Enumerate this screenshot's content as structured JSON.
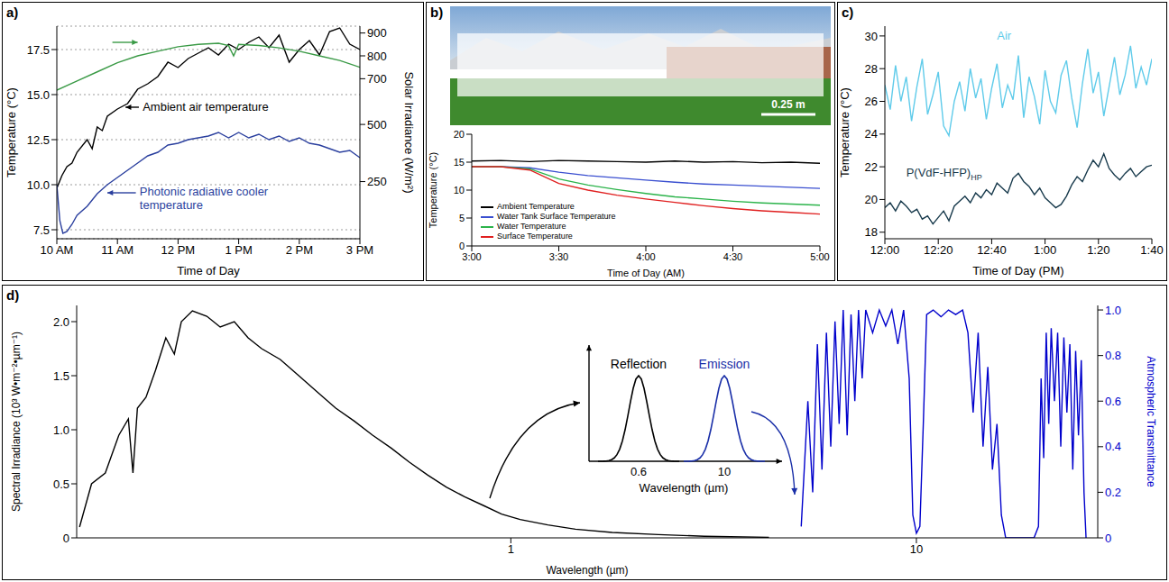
{
  "chart_data": [
    {
      "panel": "a)",
      "type": "line",
      "x_label": "Time of Day",
      "y_label": "Temperature (°C)",
      "y2_label": "Solar Irradiance (W/m²)",
      "xlim": [
        600,
        900
      ],
      "xticks": [
        {
          "value": 600,
          "label": "10 AM"
        },
        {
          "value": 660,
          "label": "11 AM"
        },
        {
          "value": 720,
          "label": "12 PM"
        },
        {
          "value": 780,
          "label": "1 PM"
        },
        {
          "value": 840,
          "label": "2 PM"
        },
        {
          "value": 900,
          "label": "3 PM"
        }
      ],
      "ylim": [
        7.0,
        18.8
      ],
      "yticks": [
        7.5,
        {
          "value": 10,
          "label": "10.0"
        },
        12.5,
        {
          "value": 15,
          "label": "15.0"
        },
        17.5
      ],
      "y2lim": [
        0,
        930
      ],
      "y2ticks": [
        250,
        500,
        700,
        800,
        900
      ],
      "grid": true,
      "series": [
        {
          "name": "Ambient air temperature",
          "color": "#000000",
          "x": [
            600,
            605,
            610,
            615,
            620,
            630,
            635,
            640,
            645,
            650,
            660,
            670,
            680,
            690,
            700,
            710,
            720,
            730,
            740,
            750,
            760,
            770,
            780,
            790,
            800,
            810,
            820,
            830,
            840,
            850,
            860,
            870,
            880,
            890,
            900
          ],
          "values": [
            9.8,
            10.5,
            11.0,
            11.2,
            11.8,
            12.5,
            12.0,
            13.2,
            13.0,
            13.8,
            14.2,
            14.5,
            15.3,
            15.6,
            16.0,
            16.8,
            16.5,
            17.0,
            17.3,
            17.6,
            17.2,
            17.8,
            17.5,
            17.9,
            18.2,
            17.6,
            18.3,
            16.8,
            17.5,
            18.0,
            17.2,
            18.5,
            18.7,
            17.8,
            17.5
          ]
        },
        {
          "name": "Photonic radiative cooler temperature",
          "color": "#2a3f9e",
          "x": [
            600,
            603,
            606,
            610,
            615,
            620,
            630,
            640,
            650,
            660,
            670,
            680,
            690,
            700,
            710,
            720,
            730,
            740,
            750,
            760,
            770,
            780,
            790,
            800,
            810,
            820,
            830,
            840,
            850,
            860,
            870,
            880,
            890,
            900
          ],
          "values": [
            10.0,
            8.0,
            7.3,
            7.4,
            7.8,
            8.3,
            8.8,
            9.5,
            10.0,
            10.4,
            10.8,
            11.2,
            11.6,
            11.8,
            12.2,
            12.3,
            12.5,
            12.6,
            12.7,
            12.9,
            12.6,
            12.9,
            12.6,
            12.8,
            12.5,
            12.7,
            12.4,
            12.6,
            12.3,
            12.2,
            12.0,
            11.8,
            11.9,
            11.5
          ]
        },
        {
          "color": "#3a9a46",
          "axis": "y2",
          "x": [
            600,
            620,
            640,
            660,
            680,
            700,
            720,
            740,
            760,
            770,
            775,
            780,
            800,
            820,
            840,
            860,
            880,
            900
          ],
          "values": [
            650,
            690,
            730,
            770,
            800,
            820,
            840,
            850,
            855,
            845,
            800,
            850,
            845,
            835,
            820,
            800,
            780,
            750
          ]
        }
      ]
    },
    {
      "panel": "b)",
      "type": "line",
      "scale_bar": "0.25 m",
      "x_label": "Time of Day (AM)",
      "y_label": "Temperature (°C)",
      "xlim": [
        180,
        300
      ],
      "xticks": [
        {
          "value": 180,
          "label": "3:00"
        },
        {
          "value": 210,
          "label": "3:30"
        },
        {
          "value": 240,
          "label": "4:00"
        },
        {
          "value": 270,
          "label": "4:30"
        },
        {
          "value": 300,
          "label": "5:00"
        }
      ],
      "ylim": [
        0,
        20
      ],
      "yticks": [
        0,
        5,
        10,
        15,
        20
      ],
      "legend": "lower left",
      "x": [
        180,
        190,
        200,
        210,
        220,
        230,
        240,
        250,
        260,
        270,
        280,
        290,
        300
      ],
      "series": [
        {
          "name": "Ambient Temperature",
          "color": "#000000",
          "values": [
            15.2,
            15.3,
            15.1,
            15.3,
            15.2,
            15.1,
            15.0,
            15.2,
            15.0,
            15.1,
            14.9,
            15.0,
            14.8
          ]
        },
        {
          "name": "Water Tank Surface Temperature",
          "color": "#3a4fd0",
          "values": [
            14.2,
            14.2,
            14.0,
            13.2,
            12.6,
            12.2,
            11.8,
            11.4,
            11.1,
            10.9,
            10.7,
            10.5,
            10.3
          ]
        },
        {
          "name": "Water Temperature",
          "color": "#2bb34a",
          "values": [
            14.2,
            14.2,
            13.8,
            12.0,
            10.9,
            10.1,
            9.4,
            8.8,
            8.4,
            8.0,
            7.7,
            7.5,
            7.3
          ]
        },
        {
          "name": "Surface Temperature",
          "color": "#e02020",
          "values": [
            14.2,
            14.2,
            13.6,
            11.2,
            10.0,
            9.1,
            8.4,
            7.8,
            7.2,
            6.7,
            6.3,
            6.0,
            5.7
          ]
        }
      ]
    },
    {
      "panel": "c)",
      "type": "line",
      "x_label": "Time of Day (PM)",
      "y_label": "Temperature (°C)",
      "xlim": [
        0,
        100
      ],
      "xticks": [
        {
          "value": 0,
          "label": "12:00"
        },
        {
          "value": 20,
          "label": "12:20"
        },
        {
          "value": 40,
          "label": "12:40"
        },
        {
          "value": 60,
          "label": "1:00"
        },
        {
          "value": 80,
          "label": "1:20"
        },
        {
          "value": 100,
          "label": "1:40"
        }
      ],
      "ylim": [
        17.6,
        30.6
      ],
      "yticks": [
        18,
        20,
        22,
        24,
        26,
        28,
        30
      ],
      "x": [
        0,
        2,
        4,
        6,
        8,
        10,
        12,
        14,
        16,
        18,
        20,
        22,
        24,
        26,
        28,
        30,
        32,
        34,
        36,
        38,
        40,
        42,
        44,
        46,
        48,
        50,
        52,
        54,
        56,
        58,
        60,
        62,
        64,
        66,
        68,
        70,
        72,
        74,
        76,
        78,
        80,
        82,
        84,
        86,
        88,
        90,
        92,
        94,
        96,
        98,
        100
      ],
      "series": [
        {
          "name": "Air",
          "color": "#5fcbea",
          "values": [
            27.0,
            25.5,
            28.2,
            26.0,
            27.5,
            24.8,
            26.9,
            28.6,
            25.2,
            26.4,
            27.8,
            24.5,
            23.9,
            26.0,
            27.2,
            25.4,
            28.0,
            26.2,
            27.4,
            24.9,
            26.8,
            28.3,
            25.6,
            27.0,
            26.1,
            28.8,
            25.0,
            27.5,
            26.3,
            24.6,
            27.9,
            26.0,
            25.3,
            27.6,
            28.5,
            26.2,
            24.4,
            27.1,
            29.2,
            26.5,
            27.8,
            25.1,
            26.9,
            28.7,
            26.4,
            27.6,
            29.4,
            26.8,
            28.1,
            27.0,
            28.6
          ]
        },
        {
          "name": "P(VdF-HFP)",
          "subscript": "HP",
          "color": "#183a4c",
          "values": [
            19.5,
            19.8,
            19.3,
            19.9,
            19.6,
            19.2,
            19.4,
            18.8,
            19.0,
            18.5,
            18.9,
            19.3,
            18.7,
            19.6,
            19.9,
            20.2,
            19.8,
            20.4,
            20.1,
            20.6,
            20.3,
            21.0,
            20.7,
            20.4,
            21.3,
            21.6,
            21.1,
            20.8,
            20.3,
            20.7,
            20.1,
            19.8,
            19.5,
            19.7,
            20.2,
            20.9,
            21.4,
            21.1,
            21.8,
            22.4,
            22.0,
            22.8,
            21.9,
            21.5,
            21.2,
            21.6,
            21.9,
            21.4,
            21.7,
            22.0,
            22.1
          ]
        }
      ]
    },
    {
      "panel": "d)",
      "type": "line",
      "log": "x",
      "x_label": "Wavelength (µm)",
      "y_label": "Spectral Irradiance (10³ W•m⁻²•µm⁻¹)",
      "y2_label": "Atmospheric Transmittance",
      "xlim": [
        0.085,
        28
      ],
      "xticks": [
        1,
        10
      ],
      "ylim": [
        0,
        2.15
      ],
      "yticks": [
        0,
        0.5,
        {
          "value": 1,
          "label": "1.0"
        },
        1.5,
        {
          "value": 2,
          "label": "2.0"
        }
      ],
      "y2lim": [
        0,
        1.02
      ],
      "y2ticks": [
        0,
        0.2,
        0.4,
        0.6,
        0.8,
        {
          "value": 1,
          "label": "1.0"
        }
      ],
      "series": [
        {
          "color": "#000000",
          "x": [
            0.0864,
            0.0925,
            0.1,
            0.108,
            0.114,
            0.117,
            0.12,
            0.126,
            0.133,
            0.141,
            0.148,
            0.154,
            0.164,
            0.178,
            0.192,
            0.208,
            0.225,
            0.243,
            0.27,
            0.3,
            0.333,
            0.37,
            0.411,
            0.456,
            0.507,
            0.562,
            0.624,
            0.693,
            0.769,
            0.855,
            0.949,
            1.054,
            1.233,
            1.443,
            1.778,
            2.31,
            3.0,
            4.33
          ],
          "values": [
            0.1,
            0.5,
            0.6,
            0.95,
            1.1,
            0.6,
            1.2,
            1.3,
            1.55,
            1.85,
            1.7,
            2.0,
            2.1,
            2.05,
            1.95,
            2.0,
            1.85,
            1.75,
            1.65,
            1.5,
            1.35,
            1.2,
            1.08,
            0.95,
            0.83,
            0.7,
            0.58,
            0.47,
            0.38,
            0.3,
            0.22,
            0.17,
            0.12,
            0.08,
            0.05,
            0.03,
            0.015,
            0.005
          ]
        },
        {
          "color": "#0000cc",
          "axis": "y2",
          "x": [
            5.2,
            5.4,
            5.55,
            5.7,
            5.85,
            6.0,
            6.15,
            6.3,
            6.45,
            6.6,
            6.75,
            6.9,
            7.05,
            7.2,
            7.35,
            7.5,
            7.8,
            8.1,
            8.4,
            8.7,
            9.0,
            9.3,
            9.6,
            9.8,
            10.0,
            10.2,
            10.4,
            10.6,
            11.0,
            11.5,
            12.0,
            12.5,
            13.0,
            13.4,
            13.8,
            14.2,
            14.6,
            15.0,
            15.4,
            15.8,
            16.2,
            16.6,
            17.5,
            18.5,
            19.5,
            20.0,
            20.3,
            20.6,
            20.9,
            21.2,
            21.5,
            21.9,
            22.3,
            22.7,
            23.1,
            23.5,
            23.9,
            24.3,
            24.7,
            25.1,
            25.5,
            25.9,
            26.2
          ],
          "values": [
            0.05,
            0.6,
            0.2,
            0.85,
            0.3,
            0.9,
            0.4,
            0.95,
            0.5,
            1.0,
            0.45,
            0.98,
            0.6,
            1.0,
            0.7,
            1.0,
            0.9,
            1.0,
            0.93,
            1.0,
            0.85,
            1.0,
            0.7,
            0.1,
            0.02,
            0.05,
            0.5,
            0.98,
            1.0,
            0.97,
            1.0,
            0.98,
            1.0,
            0.9,
            0.55,
            0.9,
            0.4,
            0.75,
            0.3,
            0.5,
            0.1,
            0.0,
            0.0,
            0.0,
            0.0,
            0.05,
            0.7,
            0.35,
            0.9,
            0.5,
            0.92,
            0.6,
            0.9,
            0.4,
            0.88,
            0.55,
            0.85,
            0.3,
            0.82,
            0.45,
            0.78,
            0.2,
            0.0
          ]
        }
      ],
      "inset": {
        "x_label": "Wavelength (µm)",
        "curves": [
          {
            "label": "Reflection",
            "peak": 0.6,
            "color": "#000000"
          },
          {
            "label": "Emission",
            "peak": 10,
            "color": "#1a2fa8"
          }
        ]
      }
    }
  ]
}
